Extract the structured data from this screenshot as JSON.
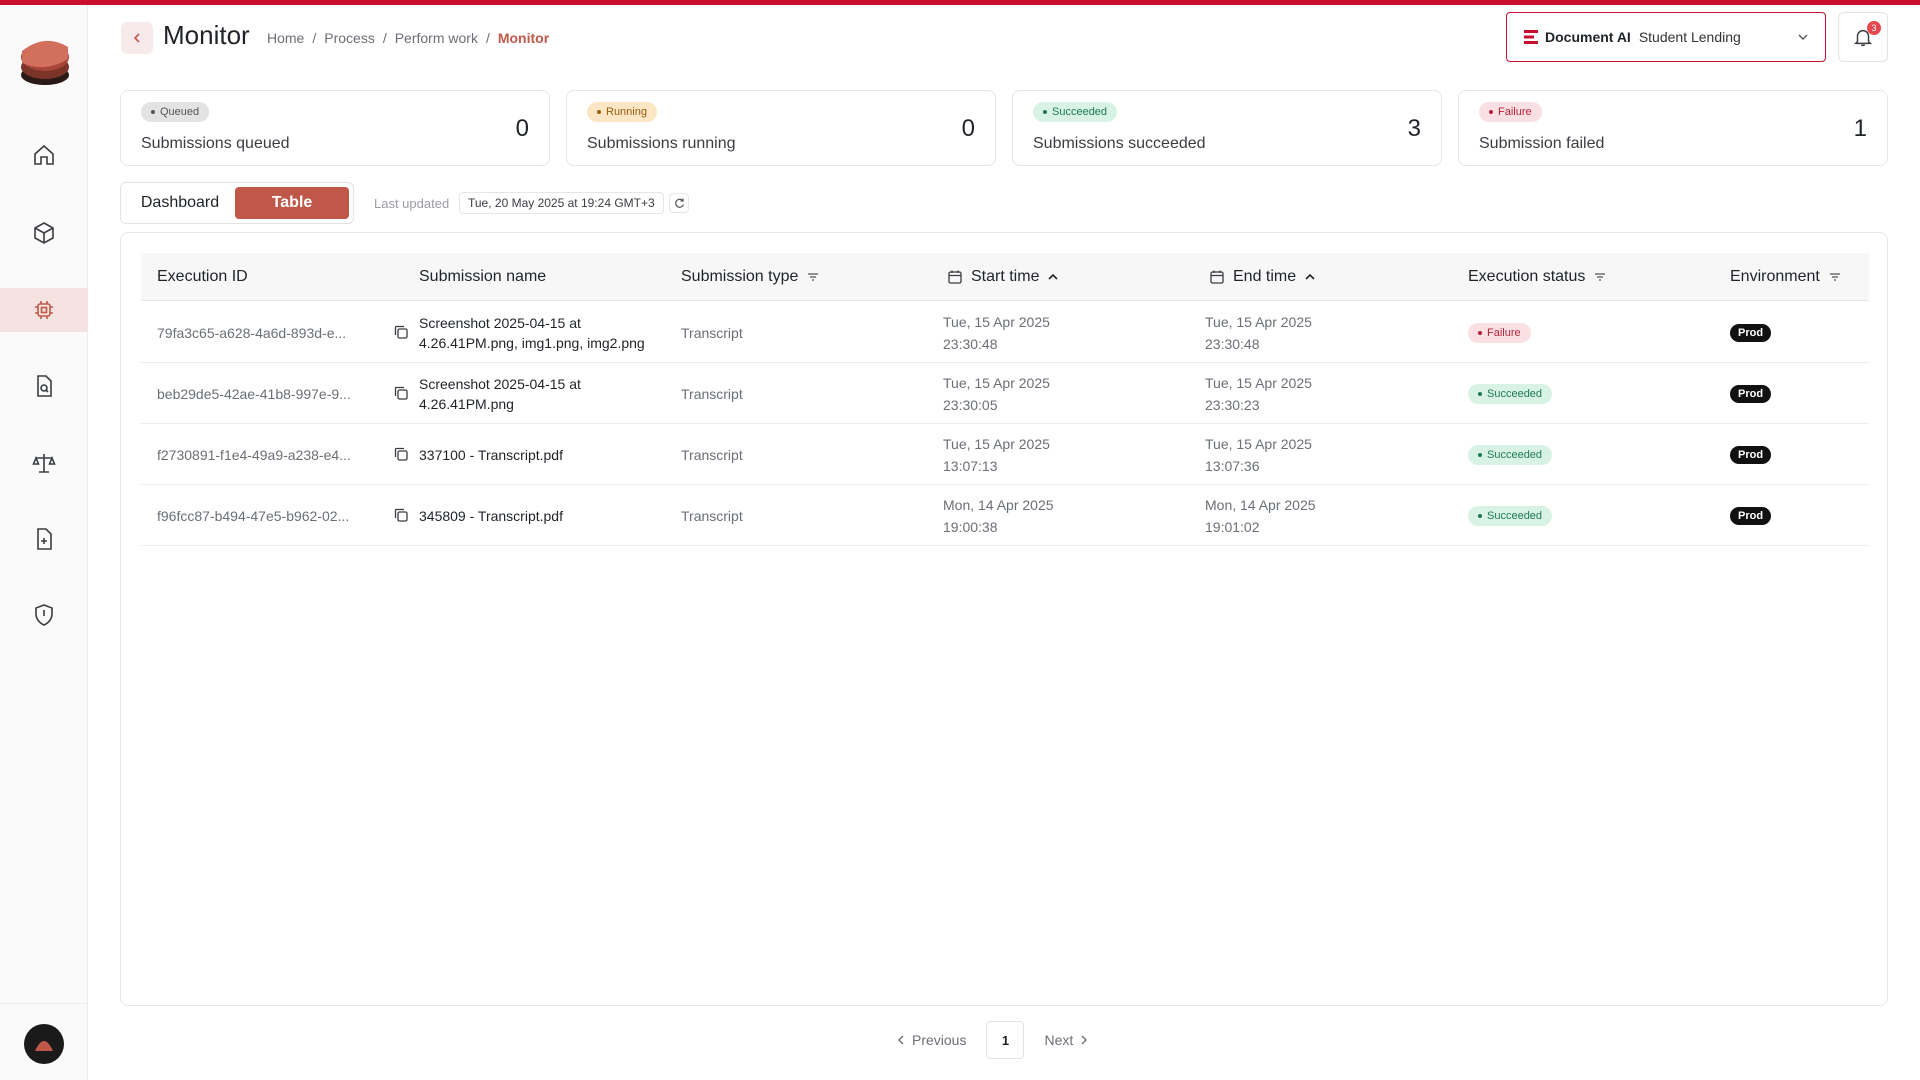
{
  "header": {
    "title": "Monitor",
    "breadcrumbs": [
      "Home",
      "Process",
      "Perform work",
      "Monitor"
    ],
    "workspace": {
      "brand": "Document AI",
      "name": "Student Lending"
    },
    "notifications_count": "3"
  },
  "sidebar": {
    "items": [
      {
        "name": "home"
      },
      {
        "name": "packages"
      },
      {
        "name": "monitor"
      },
      {
        "name": "document-search"
      },
      {
        "name": "balance"
      },
      {
        "name": "add-document"
      },
      {
        "name": "shield"
      }
    ]
  },
  "stats": [
    {
      "pill": "Queued",
      "label": "Submissions queued",
      "value": "0",
      "pill_bg": "#e3e3e3",
      "pill_fg": "#555555"
    },
    {
      "pill": "Running",
      "label": "Submissions running",
      "value": "0",
      "pill_bg": "#fde6c4",
      "pill_fg": "#9a5b10"
    },
    {
      "pill": "Succeeded",
      "label": "Submissions succeeded",
      "value": "3",
      "pill_bg": "#d8f3e6",
      "pill_fg": "#1e7a4f"
    },
    {
      "pill": "Failure",
      "label": "Submission failed",
      "value": "1",
      "pill_bg": "#fbe0e3",
      "pill_fg": "#b4233a"
    }
  ],
  "view": {
    "dashboard_label": "Dashboard",
    "table_label": "Table"
  },
  "last_updated": {
    "label": "Last updated",
    "value": "Tue, 20 May 2025 at 19:24 GMT+3"
  },
  "table": {
    "headers": {
      "execution_id": "Execution ID",
      "submission_name": "Submission name",
      "submission_type": "Submission type",
      "start_time": "Start time",
      "end_time": "End time",
      "execution_status": "Execution status",
      "environment": "Environment"
    },
    "rows": [
      {
        "id": "79fa3c65-a628-4a6d-893d-e...",
        "name_line1": "Screenshot 2025-04-15 at",
        "name_line2": "4.26.41PM.png, img1.png, img2.png",
        "type": "Transcript",
        "start_date": "Tue, 15 Apr 2025",
        "start_time": "23:30:48",
        "end_date": "Tue, 15 Apr 2025",
        "end_time": "23:30:48",
        "status": "Failure",
        "env": "Prod"
      },
      {
        "id": "beb29de5-42ae-41b8-997e-9...",
        "name_line1": "Screenshot 2025-04-15 at",
        "name_line2": "4.26.41PM.png",
        "type": "Transcript",
        "start_date": "Tue, 15 Apr 2025",
        "start_time": "23:30:05",
        "end_date": "Tue, 15 Apr 2025",
        "end_time": "23:30:23",
        "status": "Succeeded",
        "env": "Prod"
      },
      {
        "id": "f2730891-f1e4-49a9-a238-e4...",
        "name_line1": "337100 - Transcript.pdf",
        "name_line2": "",
        "type": "Transcript",
        "start_date": "Tue, 15 Apr 2025",
        "start_time": "13:07:13",
        "end_date": "Tue, 15 Apr 2025",
        "end_time": "13:07:36",
        "status": "Succeeded",
        "env": "Prod"
      },
      {
        "id": "f96fcc87-b494-47e5-b962-02...",
        "name_line1": "345809 - Transcript.pdf",
        "name_line2": "",
        "type": "Transcript",
        "start_date": "Mon, 14 Apr 2025",
        "start_time": "19:00:38",
        "end_date": "Mon, 14 Apr 2025",
        "end_time": "19:01:02",
        "status": "Succeeded",
        "env": "Prod"
      }
    ]
  },
  "status_colors": {
    "Failure": {
      "bg": "#fbe0e3",
      "fg": "#b4233a"
    },
    "Succeeded": {
      "bg": "#d8f3e6",
      "fg": "#1e7a4f"
    }
  },
  "pagination": {
    "previous": "Previous",
    "page": "1",
    "next": "Next"
  },
  "colors": {
    "accent": "#c0584a",
    "brand_red": "#c8102e"
  }
}
